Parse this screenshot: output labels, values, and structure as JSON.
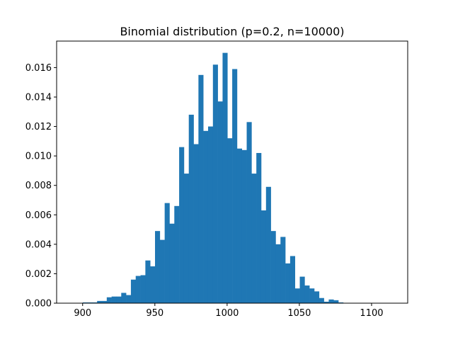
{
  "chart_data": {
    "type": "bar",
    "title": "Binomial distribution (p=0.2, n=10000)",
    "xlabel": "",
    "ylabel": "",
    "xlim": [
      882,
      1125
    ],
    "ylim": [
      0,
      0.0178
    ],
    "xticks": [
      900,
      950,
      1000,
      1050,
      1100
    ],
    "yticks": [
      0.0,
      0.002,
      0.004,
      0.006,
      0.008,
      0.01,
      0.012,
      0.014,
      0.016
    ],
    "xtick_labels": [
      "900",
      "950",
      "1000",
      "1050",
      "1100"
    ],
    "ytick_labels": [
      "0.000",
      "0.002",
      "0.004",
      "0.006",
      "0.008",
      "0.010",
      "0.012",
      "0.014",
      "0.016"
    ],
    "bar_color": "#1f77b4",
    "bin_width": 3.34,
    "bin_edges_start": 900,
    "values": [
      5e-05,
      5e-05,
      5e-05,
      0.00015,
      0.00015,
      0.0004,
      0.00045,
      0.00045,
      0.0007,
      0.00055,
      0.0016,
      0.00185,
      0.0019,
      0.0029,
      0.0025,
      0.0049,
      0.0043,
      0.0068,
      0.0054,
      0.0066,
      0.0106,
      0.0088,
      0.0128,
      0.0108,
      0.0155,
      0.0117,
      0.012,
      0.0162,
      0.0137,
      0.017,
      0.0112,
      0.0159,
      0.0105,
      0.0104,
      0.0123,
      0.0088,
      0.0102,
      0.0063,
      0.0079,
      0.0049,
      0.004,
      0.0045,
      0.0027,
      0.0032,
      0.001,
      0.0018,
      0.0012,
      0.001,
      0.0008,
      0.00035,
      0.0001,
      0.00025,
      0.0002,
      5e-05
    ]
  }
}
